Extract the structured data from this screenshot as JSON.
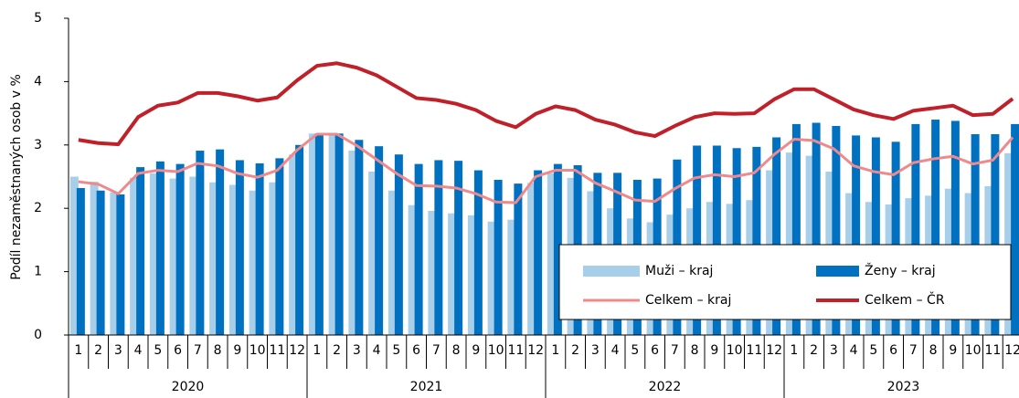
{
  "chart_data": {
    "type": "bar-line",
    "y_label": "Podíl nezaměstnaných osob v %",
    "categories": [
      "1",
      "2",
      "3",
      "4",
      "5",
      "6",
      "7",
      "8",
      "9",
      "10",
      "11",
      "12",
      "1",
      "2",
      "3",
      "4",
      "5",
      "6",
      "7",
      "8",
      "9",
      "10",
      "11",
      "12",
      "1",
      "2",
      "3",
      "4",
      "5",
      "6",
      "7",
      "8",
      "9",
      "10",
      "11",
      "12",
      "1",
      "2",
      "3",
      "4",
      "5",
      "6",
      "7",
      "8",
      "9",
      "10",
      "11",
      "12"
    ],
    "groups": [
      "2020",
      "2021",
      "2022",
      "2023"
    ],
    "ylim": [
      0,
      5
    ],
    "yticks": [
      0,
      1,
      2,
      3,
      4,
      5
    ],
    "series": [
      {
        "name": "Muži – kraj",
        "kind": "bar",
        "color": "#a8cfea",
        "values": [
          2.5,
          2.42,
          2.25,
          2.48,
          2.55,
          2.47,
          2.5,
          2.41,
          2.37,
          2.28,
          2.41,
          2.85,
          3.18,
          3.17,
          2.91,
          2.58,
          2.28,
          2.05,
          1.96,
          1.92,
          1.89,
          1.79,
          1.82,
          2.4,
          2.55,
          2.48,
          2.27,
          2.0,
          1.84,
          1.78,
          1.9,
          2.0,
          2.1,
          2.07,
          2.13,
          2.6,
          2.88,
          2.83,
          2.58,
          2.24,
          2.1,
          2.06,
          2.16,
          2.2,
          2.31,
          2.24,
          2.35,
          2.87
        ]
      },
      {
        "name": "Ženy – kraj",
        "kind": "bar",
        "color": "#0070c0",
        "values": [
          2.32,
          2.28,
          2.22,
          2.65,
          2.74,
          2.7,
          2.91,
          2.93,
          2.76,
          2.71,
          2.79,
          3.0,
          3.18,
          3.18,
          3.08,
          2.98,
          2.85,
          2.7,
          2.76,
          2.75,
          2.6,
          2.45,
          2.39,
          2.6,
          2.7,
          2.68,
          2.56,
          2.56,
          2.45,
          2.47,
          2.77,
          2.99,
          2.99,
          2.95,
          2.97,
          3.12,
          3.33,
          3.35,
          3.3,
          3.15,
          3.12,
          3.05,
          3.33,
          3.4,
          3.38,
          3.17,
          3.17,
          3.33
        ]
      },
      {
        "name": "Celkem – kraj",
        "kind": "line",
        "color": "#f0898c",
        "values": [
          2.42,
          2.38,
          2.23,
          2.55,
          2.6,
          2.58,
          2.71,
          2.67,
          2.55,
          2.49,
          2.6,
          2.92,
          3.17,
          3.17,
          2.99,
          2.77,
          2.55,
          2.36,
          2.35,
          2.32,
          2.23,
          2.1,
          2.09,
          2.5,
          2.6,
          2.6,
          2.4,
          2.27,
          2.13,
          2.11,
          2.31,
          2.48,
          2.53,
          2.5,
          2.56,
          2.85,
          3.09,
          3.07,
          2.94,
          2.67,
          2.58,
          2.53,
          2.72,
          2.78,
          2.82,
          2.7,
          2.76,
          3.12
        ]
      },
      {
        "name": "Celkem – ČR",
        "kind": "line",
        "color": "#c0202a",
        "values": [
          3.08,
          3.03,
          3.01,
          3.44,
          3.62,
          3.67,
          3.82,
          3.82,
          3.77,
          3.7,
          3.75,
          4.02,
          4.25,
          4.29,
          4.22,
          4.1,
          3.92,
          3.74,
          3.71,
          3.65,
          3.55,
          3.38,
          3.28,
          3.49,
          3.61,
          3.55,
          3.4,
          3.32,
          3.2,
          3.14,
          3.3,
          3.44,
          3.5,
          3.49,
          3.5,
          3.72,
          3.88,
          3.88,
          3.72,
          3.56,
          3.47,
          3.41,
          3.54,
          3.58,
          3.62,
          3.47,
          3.49,
          3.73
        ]
      }
    ]
  }
}
